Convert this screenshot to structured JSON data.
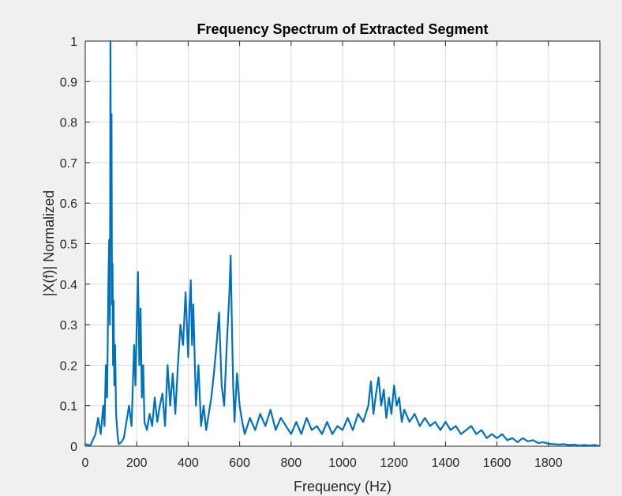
{
  "chart_data": {
    "type": "line",
    "title": "Frequency Spectrum of Extracted Segment",
    "xlabel": "Frequency (Hz)",
    "ylabel": "|X(f)| Normalized",
    "xlim": [
      0,
      2000
    ],
    "ylim": [
      0,
      1
    ],
    "xticks": [
      0,
      200,
      400,
      600,
      800,
      1000,
      1200,
      1400,
      1600,
      1800
    ],
    "xtick_labels": [
      "0",
      "200",
      "400",
      "600",
      "800",
      "1000",
      "1200",
      "1400",
      "1600",
      "1800"
    ],
    "yticks": [
      0,
      0.1,
      0.2,
      0.3,
      0.4,
      0.5,
      0.6,
      0.7,
      0.8,
      0.9,
      1
    ],
    "ytick_labels": [
      "0",
      "0.1",
      "0.2",
      "0.3",
      "0.4",
      "0.5",
      "0.6",
      "0.7",
      "0.8",
      "0.9",
      "1"
    ],
    "grid": true,
    "series_color": "#0072BD",
    "series": [
      {
        "x": [
          0,
          20,
          40,
          50,
          60,
          70,
          75,
          80,
          85,
          90,
          93,
          96,
          98,
          100,
          102,
          104,
          106,
          108,
          110,
          113,
          116,
          120,
          125,
          130,
          140,
          150,
          160,
          170,
          180,
          190,
          195,
          200,
          205,
          210,
          215,
          220,
          225,
          230,
          240,
          250,
          260,
          270,
          280,
          290,
          300,
          310,
          320,
          330,
          340,
          350,
          360,
          370,
          380,
          390,
          400,
          405,
          410,
          415,
          420,
          430,
          440,
          450,
          460,
          470,
          480,
          490,
          500,
          510,
          520,
          530,
          540,
          550,
          560,
          565,
          570,
          575,
          580,
          590,
          600,
          610,
          620,
          640,
          660,
          680,
          700,
          720,
          740,
          760,
          780,
          800,
          820,
          840,
          860,
          880,
          900,
          920,
          940,
          960,
          980,
          1000,
          1020,
          1040,
          1060,
          1080,
          1100,
          1110,
          1120,
          1130,
          1140,
          1150,
          1160,
          1170,
          1180,
          1190,
          1200,
          1210,
          1220,
          1230,
          1240,
          1260,
          1280,
          1300,
          1320,
          1340,
          1360,
          1380,
          1400,
          1420,
          1440,
          1460,
          1480,
          1500,
          1520,
          1540,
          1560,
          1580,
          1600,
          1620,
          1640,
          1660,
          1680,
          1700,
          1720,
          1740,
          1760,
          1780,
          1800,
          1820,
          1840,
          1860,
          1880,
          1900,
          1920,
          1940,
          1960,
          1980,
          1995
        ],
        "y": [
          0.005,
          0.002,
          0.03,
          0.07,
          0.03,
          0.1,
          0.05,
          0.2,
          0.12,
          0.4,
          0.51,
          0.3,
          1.0,
          0.6,
          0.82,
          0.35,
          0.45,
          0.2,
          0.36,
          0.15,
          0.25,
          0.08,
          0.03,
          0.005,
          0.01,
          0.02,
          0.06,
          0.1,
          0.05,
          0.25,
          0.15,
          0.3,
          0.43,
          0.2,
          0.34,
          0.12,
          0.2,
          0.06,
          0.04,
          0.08,
          0.05,
          0.12,
          0.06,
          0.1,
          0.13,
          0.05,
          0.2,
          0.1,
          0.18,
          0.08,
          0.2,
          0.3,
          0.25,
          0.38,
          0.22,
          0.34,
          0.41,
          0.25,
          0.35,
          0.1,
          0.2,
          0.05,
          0.1,
          0.04,
          0.08,
          0.12,
          0.18,
          0.25,
          0.33,
          0.15,
          0.1,
          0.25,
          0.38,
          0.47,
          0.3,
          0.15,
          0.06,
          0.18,
          0.1,
          0.06,
          0.03,
          0.07,
          0.04,
          0.08,
          0.05,
          0.09,
          0.04,
          0.07,
          0.05,
          0.03,
          0.06,
          0.03,
          0.07,
          0.04,
          0.05,
          0.03,
          0.06,
          0.03,
          0.05,
          0.04,
          0.07,
          0.04,
          0.08,
          0.06,
          0.1,
          0.16,
          0.08,
          0.13,
          0.17,
          0.1,
          0.14,
          0.07,
          0.12,
          0.08,
          0.15,
          0.1,
          0.12,
          0.06,
          0.09,
          0.06,
          0.08,
          0.05,
          0.07,
          0.05,
          0.06,
          0.04,
          0.06,
          0.04,
          0.05,
          0.03,
          0.04,
          0.05,
          0.03,
          0.04,
          0.02,
          0.03,
          0.02,
          0.03,
          0.015,
          0.02,
          0.01,
          0.02,
          0.012,
          0.015,
          0.008,
          0.01,
          0.006,
          0.005,
          0.004,
          0.005,
          0.003,
          0.004,
          0.002,
          0.003,
          0.002,
          0.003,
          0.001
        ]
      }
    ]
  }
}
